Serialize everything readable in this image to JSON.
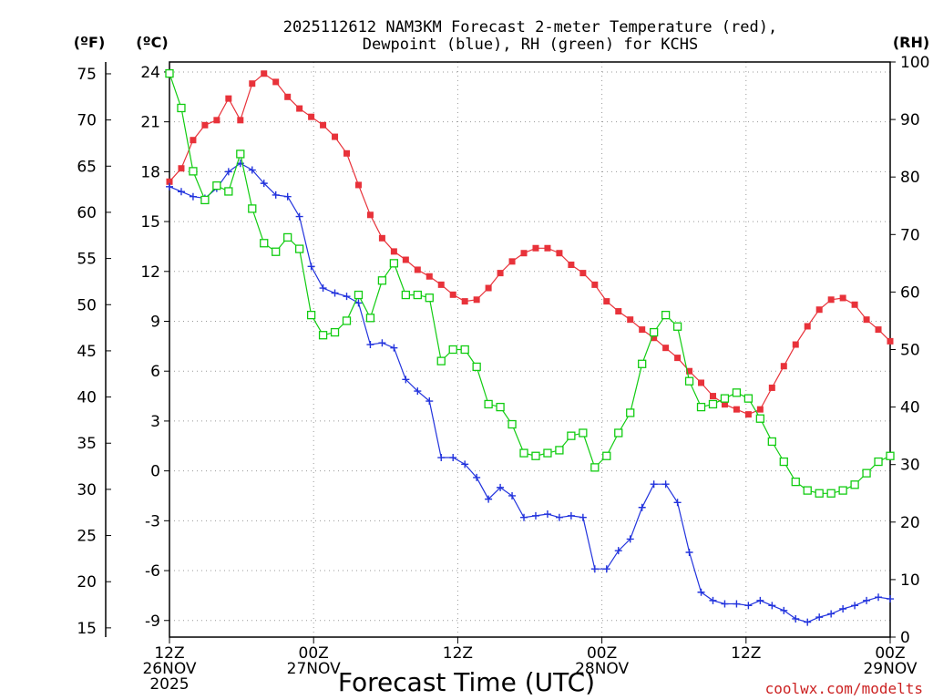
{
  "chart_data": {
    "type": "line",
    "title": "2025112612 NAM3KM Forecast 2-meter Temperature (red),",
    "subtitle": "Dewpoint (blue), RH (green) for KCHS",
    "xlabel": "Forecast Time (UTC)",
    "credit": "coolwx.com/modelts",
    "colors": {
      "temp": "#e8323a",
      "dewpoint": "#2233dd",
      "rh": "#11cc11",
      "credit": "#cc2222"
    },
    "units": {
      "fahrenheit": "(ºF)",
      "celsius": "(ºC)",
      "rh": "(RH)"
    },
    "xlim": [
      0,
      60
    ],
    "x_ticks": [
      {
        "hour": 0,
        "lines": [
          "12Z",
          "26NOV",
          "2025"
        ]
      },
      {
        "hour": 12,
        "lines": [
          "00Z",
          "27NOV"
        ]
      },
      {
        "hour": 24,
        "lines": [
          "12Z"
        ]
      },
      {
        "hour": 36,
        "lines": [
          "00Z",
          "28NOV"
        ]
      },
      {
        "hour": 48,
        "lines": [
          "12Z"
        ]
      },
      {
        "hour": 60,
        "lines": [
          "00Z",
          "29NOV"
        ]
      }
    ],
    "ylim_c": [
      -10,
      24.6
    ],
    "y_ticks_c": [
      "24",
      "21",
      "18",
      "15",
      "12",
      "9",
      "6",
      "3",
      "0",
      "-3",
      "-6",
      "-9"
    ],
    "y_ticks_f": [
      "75",
      "70",
      "65",
      "60",
      "55",
      "50",
      "45",
      "40",
      "35",
      "30",
      "25",
      "20",
      "15"
    ],
    "ylim_rh": [
      0,
      100
    ],
    "y_ticks_rh": [
      "100",
      "90",
      "80",
      "70",
      "60",
      "50",
      "40",
      "30",
      "20",
      "10",
      "0"
    ],
    "series": [
      {
        "name": "Temperature",
        "units": "C",
        "values": [
          17.4,
          18.2,
          19.9,
          20.8,
          21.1,
          22.4,
          21.1,
          23.3,
          23.9,
          23.4,
          22.5,
          21.8,
          21.3,
          20.8,
          20.1,
          19.1,
          17.2,
          15.4,
          14.0,
          13.2,
          12.7,
          12.1,
          11.7,
          11.2,
          10.6,
          10.2,
          10.3,
          11.0,
          11.9,
          12.6,
          13.1,
          13.4,
          13.4,
          13.1,
          12.4,
          11.9,
          11.2,
          10.2,
          9.6,
          9.1,
          8.5,
          8.0,
          7.4,
          6.8,
          6.0,
          5.3,
          4.5,
          4.0,
          3.7,
          3.4,
          3.7,
          5.0,
          6.3,
          7.6,
          8.7,
          9.7,
          10.3,
          10.4,
          10.0,
          9.1,
          8.5,
          7.8
        ]
      },
      {
        "name": "Dewpoint",
        "units": "C",
        "values": [
          17.1,
          16.8,
          16.5,
          16.4,
          17.0,
          18.0,
          18.5,
          18.1,
          17.3,
          16.6,
          16.5,
          15.3,
          12.3,
          11.0,
          10.7,
          10.5,
          10.1,
          7.6,
          7.7,
          7.4,
          5.5,
          4.8,
          4.2,
          0.8,
          0.8,
          0.4,
          -0.4,
          -1.7,
          -1.0,
          -1.5,
          -2.8,
          -2.7,
          -2.6,
          -2.8,
          -2.7,
          -2.8,
          -5.9,
          -5.9,
          -4.8,
          -4.1,
          -2.2,
          -0.8,
          -0.8,
          -1.9,
          -4.9,
          -7.3,
          -7.8,
          -8.0,
          -8.0,
          -8.1,
          -7.8,
          -8.1,
          -8.4,
          -8.9,
          -9.1,
          -8.8,
          -8.6,
          -8.3,
          -8.1,
          -7.8,
          -7.6,
          -7.7
        ]
      },
      {
        "name": "RH",
        "units": "%",
        "values": [
          98,
          92,
          81,
          76,
          78.5,
          77.5,
          84,
          74.5,
          68.5,
          67,
          69.5,
          67.5,
          56,
          52.5,
          53,
          55,
          59.5,
          55.5,
          62,
          65,
          59.5,
          59.5,
          59,
          48,
          50,
          50,
          47,
          40.5,
          40,
          37,
          32,
          31.5,
          32,
          32.5,
          35,
          35.5,
          29.5,
          31.5,
          35.5,
          39,
          47.5,
          53,
          56,
          54,
          44.5,
          40,
          40.5,
          41.5,
          42.5,
          41.5,
          38,
          34,
          30.5,
          27,
          25.5,
          25,
          25,
          25.5,
          26.5,
          28.5,
          30.5,
          31.5
        ]
      }
    ]
  }
}
